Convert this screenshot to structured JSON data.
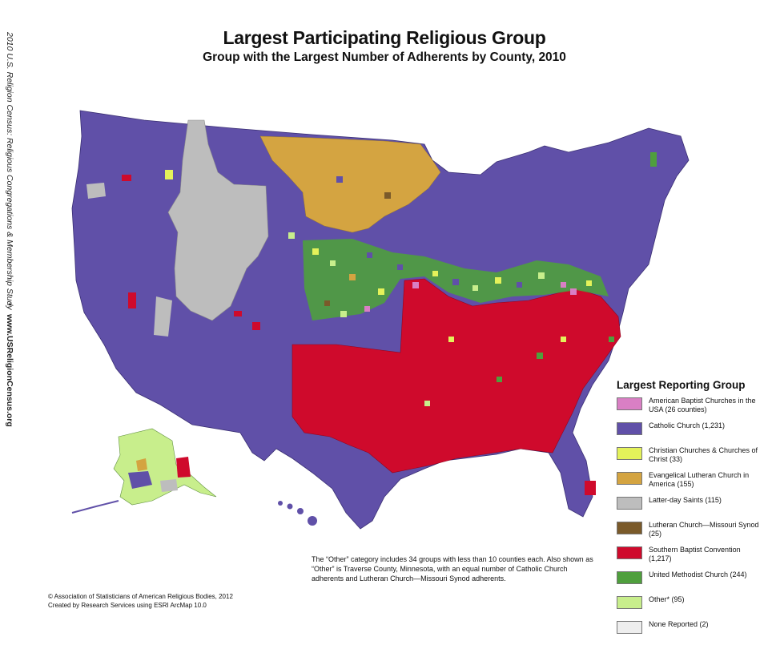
{
  "side_text": {
    "line1": "2010 U.S. Religion Census: Religious Congregations & Membership Study",
    "separator": "•",
    "line2": "www.USReligionCensus.org"
  },
  "title": "Largest Participating Religious Group",
  "subtitle": "Group with the Largest Number of Adherents by County, 2010",
  "legend": {
    "title": "Largest Reporting Group",
    "items": [
      {
        "label": "American Baptist Churches in the USA (26 counties)",
        "color": "#d97fc4"
      },
      {
        "label": "Catholic Church (1,231)",
        "color": "#6050a8"
      },
      {
        "label": "Christian Churches & Churches of Christ (33)",
        "color": "#e4f25a"
      },
      {
        "label": "Evangelical Lutheran Church in America (155)",
        "color": "#d4a441"
      },
      {
        "label": "Latter-day Saints (115)",
        "color": "#bdbdbd"
      },
      {
        "label": "Lutheran Church—Missouri Synod (25)",
        "color": "#7a5a2a"
      },
      {
        "label": "Southern Baptist Convention (1,217)",
        "color": "#cf0a2c"
      },
      {
        "label": "United Methodist Church (244)",
        "color": "#4f9f3d"
      },
      {
        "label": "Other* (95)",
        "color": "#c8ee8c"
      },
      {
        "label": "None Reported (2)",
        "color": "#eeeeee"
      }
    ]
  },
  "note": "The “Other” category includes 34 groups with less than 10 counties each. Also shown as “Other” is Traverse County, Minnesota, with an equal number of Catholic Church adherents and Lutheran Church—Missouri Synod adherents.",
  "credits": {
    "line1": "© Association of Statisticians of American Religious Bodies, 2012",
    "line2": "Created by Research Services using ESRI ArcMap 10.0"
  }
}
